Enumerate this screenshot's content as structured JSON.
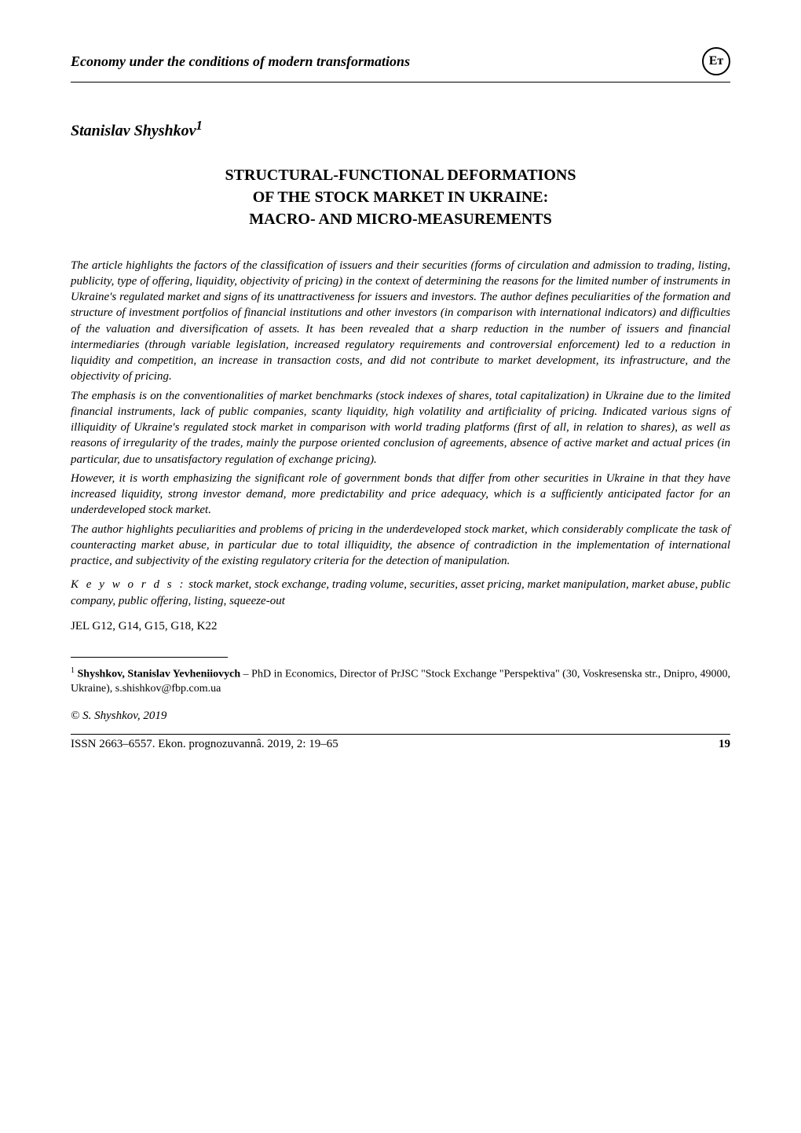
{
  "header": {
    "section_title": "Economy under the conditions of modern transformations",
    "logo_text": "Ет"
  },
  "author": {
    "name": "Stanislav Shyshkov",
    "footnote_marker": "1"
  },
  "title": {
    "line1": "STRUCTURAL-FUNCTIONAL DEFORMATIONS",
    "line2": "OF THE STOCK MARKET IN UKRAINE:",
    "line3": "MACRO- AND MICRO-MEASUREMENTS"
  },
  "abstract": {
    "para1": "The article highlights the factors of the classification of issuers and their securities (forms of circulation and admission to trading, listing, publicity, type of offering, liquidity, objectivity of pricing) in the context of determining the reasons for the limited number of instruments in Ukraine's regulated market and signs of its unattractiveness for issuers and investors. The author defines peculiarities of the formation and structure of investment portfolios of financial institutions and other investors (in comparison with international indicators) and difficulties of the valuation and diversification of assets. It has been revealed that a sharp reduction in the number of issuers and financial intermediaries (through variable legislation, increased regulatory requirements and controversial enforcement) led to a reduction in liquidity and competition, an increase in transaction costs, and did not contribute to market development, its infrastructure, and the objectivity of pricing.",
    "para2": "The emphasis is on the conventionalities of market benchmarks (stock indexes of shares, total capitalization) in Ukraine due to the limited financial instruments, lack of public companies, scanty liquidity, high volatility and artificiality of pricing. Indicated various signs of illiquidity of Ukraine's regulated stock market in comparison with world trading platforms (first of all, in relation to shares), as well as reasons of irregularity of the trades, mainly the purpose oriented conclusion of agreements, absence of active market and actual prices (in particular, due to unsatisfactory regulation of exchange pricing).",
    "para3": "However, it is worth emphasizing the significant role of government bonds that differ from other securities in Ukraine in that they have increased liquidity, strong investor demand, more predictability and price adequacy, which is a sufficiently anticipated factor for an underdeveloped stock market.",
    "para4": "The author highlights peculiarities and problems of pricing in the underdeveloped stock market, which considerably complicate the task of counteracting market abuse, in particular due to total illiquidity, the absence of contradiction in the implementation of international practice, and subjectivity of the existing regulatory criteria for the detection of manipulation."
  },
  "keywords": {
    "label": "K e y  w o r d s :",
    "text": "stock market, stock exchange, trading volume, securities, asset pricing, market manipulation, market abuse, public company, public offering, listing, squeeze-out"
  },
  "jel": "JEL G12, G14, G15, G18, K22",
  "footnote": {
    "marker": "1",
    "author_name": "Shyshkov, Stanislav Yevheniiovych",
    "text": " – PhD in Economics, Director of PrJSC \"Stock Exchange \"Perspektiva\" (30, Voskresenska str., Dnipro, 49000, Ukraine), s.shishkov@fbp.com.ua"
  },
  "copyright": "© S. Shyshkov, 2019",
  "footer": {
    "citation": "ISSN 2663–6557. Ekon. prognozuvannâ. 2019, 2: 19–65",
    "page": "19"
  }
}
